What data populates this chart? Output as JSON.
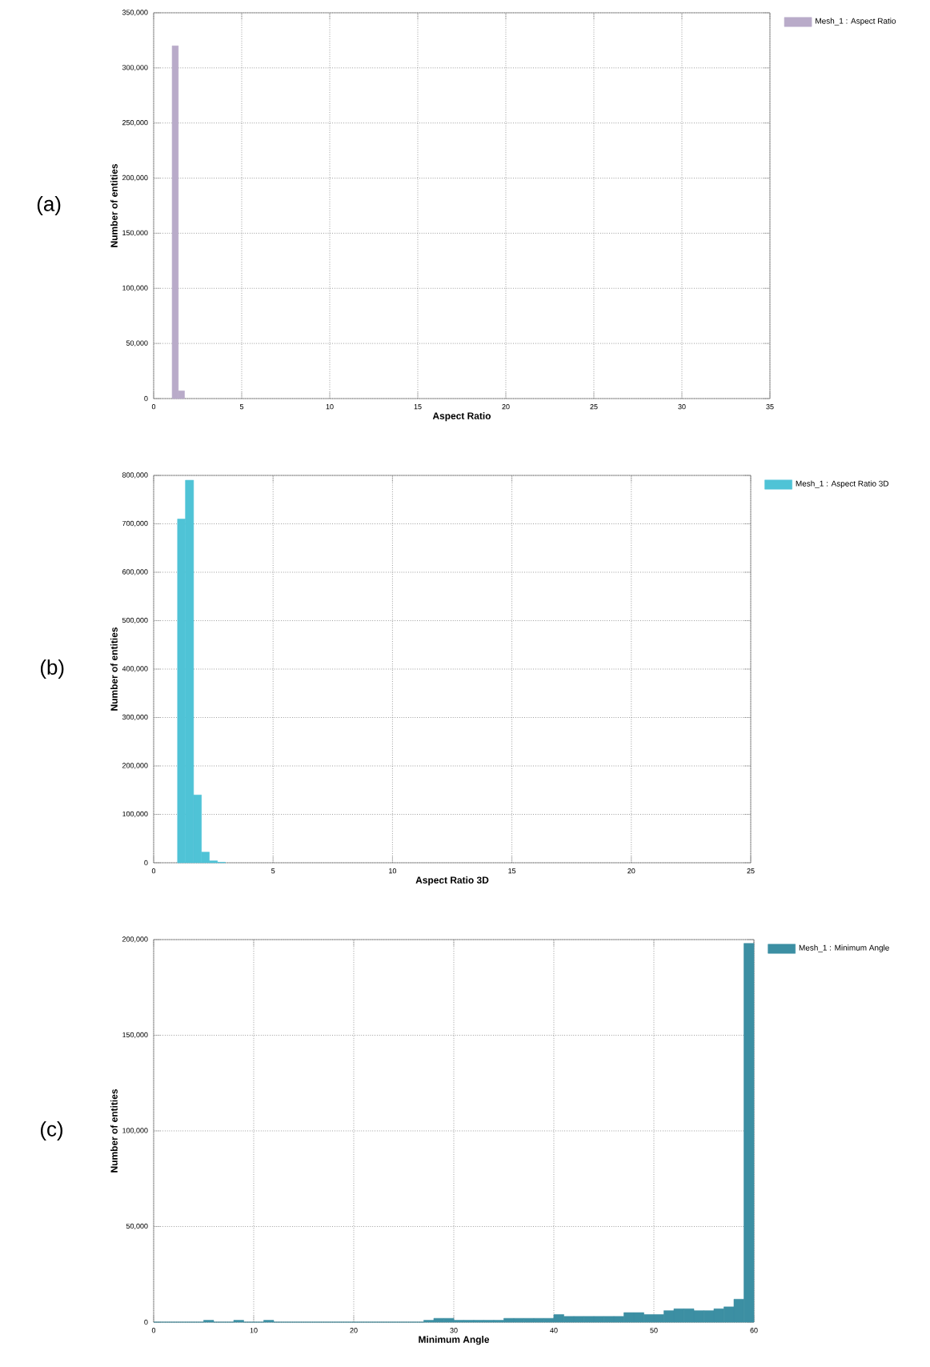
{
  "chart_data": [
    {
      "type": "histogram",
      "xlabel": "Aspect Ratio",
      "ylabel": "Number of entities",
      "annotations": [
        "(a)"
      ],
      "legend": "right",
      "grid": true,
      "bins": [
        1.05,
        1.4,
        1.75
      ],
      "series": [
        {
          "name": "Mesh_1 : Aspect Ratio",
          "color": "#b9abc9",
          "values": [
            320000,
            7000
          ]
        }
      ],
      "xlim": [
        0,
        35
      ],
      "xticks": [
        0,
        5,
        10,
        15,
        20,
        25,
        30,
        35
      ],
      "ylim": [
        0,
        350000
      ],
      "yticks": [
        0,
        {
          "value": 50000,
          "label": "50,000"
        },
        {
          "value": 100000,
          "label": "100,000"
        },
        {
          "value": 150000,
          "label": "150,000"
        },
        {
          "value": 200000,
          "label": "200,000"
        },
        {
          "value": 250000,
          "label": "250,000"
        },
        {
          "value": 300000,
          "label": "300,000"
        },
        {
          "value": 350000,
          "label": "350,000"
        }
      ]
    },
    {
      "type": "histogram",
      "xlabel": "Aspect Ratio 3D",
      "ylabel": "Number of entities",
      "annotations": [
        "(b)"
      ],
      "legend": "right",
      "grid": true,
      "bins": [
        1,
        1.33,
        1.67,
        2,
        2.33,
        2.67,
        3
      ],
      "series": [
        {
          "name": "Mesh_1 : Aspect Ratio 3D",
          "color": "#4fc3d6",
          "values": [
            710000,
            790000,
            140000,
            22000,
            4000,
            1000
          ]
        }
      ],
      "xlim": [
        0,
        25
      ],
      "xticks": [
        0,
        5,
        10,
        15,
        20,
        25
      ],
      "ylim": [
        0,
        800000
      ],
      "yticks": [
        0,
        {
          "value": 100000,
          "label": "100,000"
        },
        {
          "value": 200000,
          "label": "200,000"
        },
        {
          "value": 300000,
          "label": "300,000"
        },
        {
          "value": 400000,
          "label": "400,000"
        },
        {
          "value": 500000,
          "label": "500,000"
        },
        {
          "value": 600000,
          "label": "600,000"
        },
        {
          "value": 700000,
          "label": "700,000"
        },
        {
          "value": 800000,
          "label": "800,000"
        }
      ]
    },
    {
      "type": "histogram",
      "xlabel": "Minimum Angle",
      "ylabel": "Number of entities",
      "annotations": [
        "(c)"
      ],
      "legend": "right",
      "grid": true,
      "bins": [
        0,
        1,
        2,
        3,
        4,
        5,
        6,
        7,
        8,
        9,
        10,
        11,
        12,
        13,
        14,
        15,
        16,
        17,
        18,
        19,
        20,
        21,
        22,
        23,
        24,
        25,
        26,
        27,
        28,
        29,
        30,
        31,
        32,
        33,
        34,
        35,
        36,
        37,
        38,
        39,
        40,
        41,
        42,
        43,
        44,
        45,
        46,
        47,
        48,
        49,
        50,
        51,
        52,
        53,
        54,
        55,
        56,
        57,
        58,
        59,
        60
      ],
      "series": [
        {
          "name": "Mesh_1 : Minimum Angle",
          "color": "#3c8fa3",
          "values": [
            0,
            0,
            0,
            0,
            0,
            1000,
            0,
            0,
            1000,
            0,
            0,
            1000,
            0,
            0,
            0,
            0,
            0,
            0,
            0,
            0,
            0,
            0,
            0,
            0,
            0,
            0,
            0,
            1000,
            2000,
            2000,
            1000,
            1000,
            1000,
            1000,
            1000,
            2000,
            2000,
            2000,
            2000,
            2000,
            4000,
            3000,
            3000,
            3000,
            3000,
            3000,
            3000,
            5000,
            5000,
            4000,
            4000,
            6000,
            7000,
            7000,
            6000,
            6000,
            7000,
            8000,
            12000,
            198000
          ]
        }
      ],
      "xlim": [
        0,
        60
      ],
      "xticks": [
        0,
        10,
        20,
        30,
        40,
        50,
        60
      ],
      "ylim": [
        0,
        200000
      ],
      "yticks": [
        0,
        {
          "value": 50000,
          "label": "50,000"
        },
        {
          "value": 100000,
          "label": "100,000"
        },
        {
          "value": 150000,
          "label": "150,000"
        },
        {
          "value": 200000,
          "label": "200,000"
        }
      ]
    }
  ]
}
